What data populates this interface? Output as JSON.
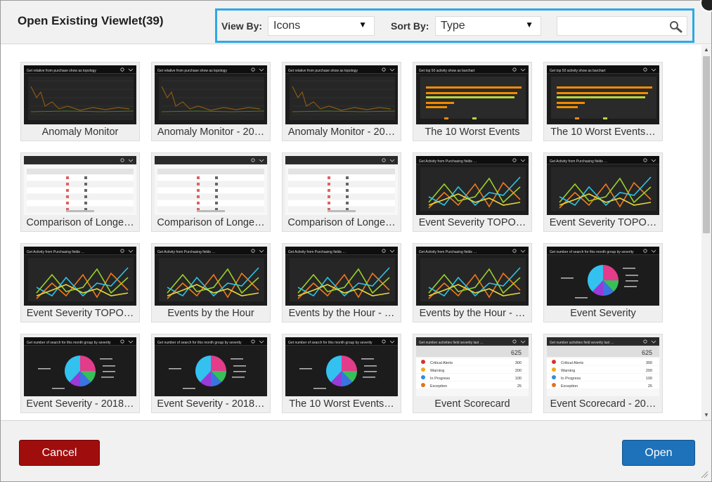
{
  "dialog": {
    "title": "Open Existing Viewlet(39)"
  },
  "toolbar": {
    "view_by_label": "View By:",
    "view_by_value": "Icons",
    "sort_by_label": "Sort By:",
    "sort_by_value": "Type",
    "caret": "▼",
    "search_placeholder": "",
    "search_icon": "search-icon"
  },
  "tiles": [
    {
      "label": "Anomaly Monitor",
      "kind": "line",
      "caption": "Get relative from purchase show as topology"
    },
    {
      "label": "Anomaly Monitor - 20…",
      "kind": "line",
      "caption": "Get relative from purchase show as topology"
    },
    {
      "label": "Anomaly Monitor - 20…",
      "kind": "line",
      "caption": "Get relative from purchase show as topology"
    },
    {
      "label": "The 10 Worst Events",
      "kind": "hbar",
      "caption": "Get top 50 activity show as barchart"
    },
    {
      "label": "The 10 Worst Events…",
      "kind": "hbar",
      "caption": "Get top 50 activity show as barchart"
    },
    {
      "label": "Comparison of Longe…",
      "kind": "table",
      "caption": ""
    },
    {
      "label": "Comparison of Longe…",
      "kind": "table",
      "caption": ""
    },
    {
      "label": "Comparison of Longe…",
      "kind": "table",
      "caption": ""
    },
    {
      "label": "Event Severity TOPO…",
      "kind": "multiline",
      "caption": "Get Activity from Purchasing fields …"
    },
    {
      "label": "Event Severity TOPO…",
      "kind": "multiline",
      "caption": "Get Activity from Purchasing fields …"
    },
    {
      "label": "Event Severity TOPO…",
      "kind": "multiline",
      "caption": "Get Activity from Purchasing fields …"
    },
    {
      "label": "Events by the Hour",
      "kind": "multiline",
      "caption": "Get Activity from Purchasing fields …"
    },
    {
      "label": "Events by the Hour - …",
      "kind": "multiline",
      "caption": "Get Activity from Purchasing fields …"
    },
    {
      "label": "Events by the Hour - …",
      "kind": "multiline",
      "caption": "Get Activity from Purchasing fields …"
    },
    {
      "label": "Event Severity",
      "kind": "pie",
      "caption": "Get number of search for this month group by severity"
    },
    {
      "label": "Event Severity - 2018…",
      "kind": "pie",
      "caption": "Get number of search for this month group by severity"
    },
    {
      "label": "Event Severity - 2018…",
      "kind": "pie",
      "caption": "Get number of search for this month group by severity"
    },
    {
      "label": "The 10 Worst Events…",
      "kind": "pie",
      "caption": "Get number of search for this month group by severity"
    },
    {
      "label": "Event Scorecard",
      "kind": "scorecard",
      "caption": "Get number activities field severity last …",
      "total": "625",
      "rows": [
        {
          "name": "Critical Alerts",
          "value": "300"
        },
        {
          "name": "Warning",
          "value": "200"
        },
        {
          "name": "In Progress",
          "value": "100"
        },
        {
          "name": "Exception",
          "value": "25"
        }
      ]
    },
    {
      "label": "Event Scorecard - 20…",
      "kind": "scorecard",
      "caption": "Get number activities field severity last …",
      "total": "625",
      "rows": [
        {
          "name": "Critical Alerts",
          "value": "300"
        },
        {
          "name": "Warning",
          "value": "200"
        },
        {
          "name": "In Progress",
          "value": "100"
        },
        {
          "name": "Exception",
          "value": "25"
        }
      ]
    }
  ],
  "footer": {
    "cancel_label": "Cancel",
    "open_label": "Open"
  },
  "colors": {
    "accent_border": "#2ea8e6",
    "cancel": "#a00d0d",
    "open": "#1d72ba"
  }
}
